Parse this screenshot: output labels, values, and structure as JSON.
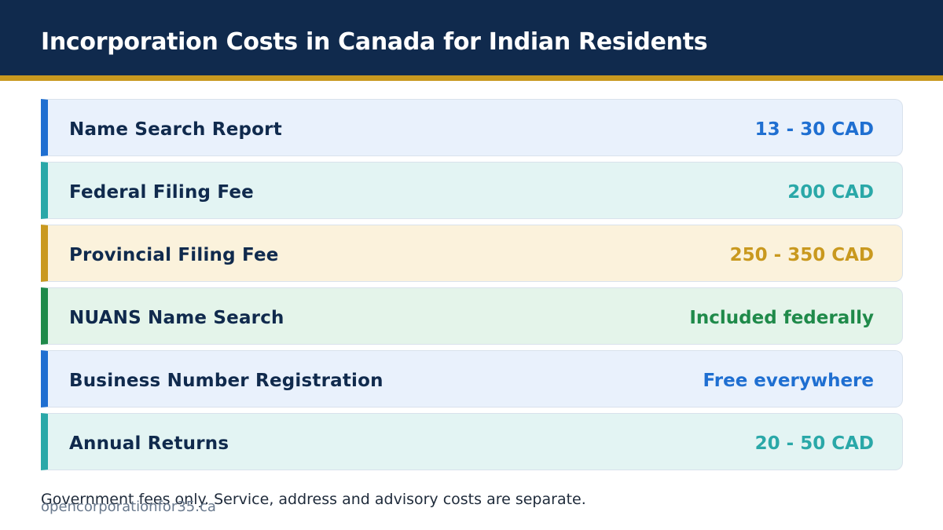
{
  "header": {
    "title": "Incorporation Costs in Canada for Indian Residents"
  },
  "rows": [
    {
      "label": "Name Search Report",
      "value": "13 - 30 CAD",
      "accent": "#1f6fd1",
      "background": "#e9f1fc"
    },
    {
      "label": "Federal Filing Fee",
      "value": "200 CAD",
      "accent": "#2aa8a8",
      "background": "#e3f4f3"
    },
    {
      "label": "Provincial Filing Fee",
      "value": "250 - 350 CAD",
      "accent": "#c9991f",
      "background": "#fbf2dc"
    },
    {
      "label": "NUANS Name Search",
      "value": "Included federally",
      "accent": "#1f8a4a",
      "background": "#e4f4ea"
    },
    {
      "label": "Business Number Registration",
      "value": "Free everywhere",
      "accent": "#1f6fd1",
      "background": "#e9f1fc"
    },
    {
      "label": "Annual Returns",
      "value": "20 - 50 CAD",
      "accent": "#2aa8a8",
      "background": "#e3f4f3"
    }
  ],
  "footer": {
    "note": "Government fees only. Service, address and advisory costs are separate.",
    "site": "opencorporationfor35.ca"
  }
}
